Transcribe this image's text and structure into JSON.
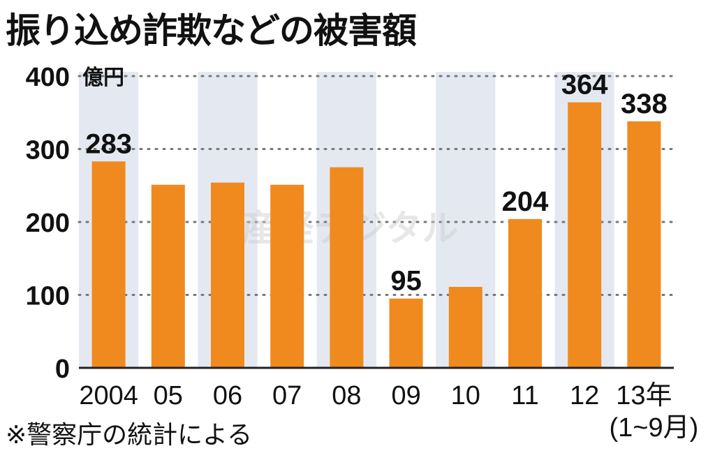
{
  "chart_data": {
    "type": "bar",
    "title": "振り込め詐欺などの被害額",
    "ylabel": "億円",
    "xlabel": "",
    "categories": [
      "2004",
      "05",
      "06",
      "07",
      "08",
      "09",
      "10",
      "11",
      "12",
      "13年"
    ],
    "category_sublabels": {
      "13年": "(1~9月)"
    },
    "values": [
      283,
      251,
      254,
      251,
      275,
      95,
      111,
      204,
      364,
      338
    ],
    "data_labels": {
      "0": "283",
      "5": "95",
      "7": "204",
      "8": "364",
      "9": "338"
    },
    "ylim": [
      0,
      400
    ],
    "yticks": [
      "0",
      "100",
      "200",
      "300",
      "400"
    ],
    "grid": true,
    "bar_color": "#f08a1e",
    "band_color": "#e4e9f1",
    "source_note": "※警察庁の統計による",
    "watermark": "産経デジタル"
  }
}
